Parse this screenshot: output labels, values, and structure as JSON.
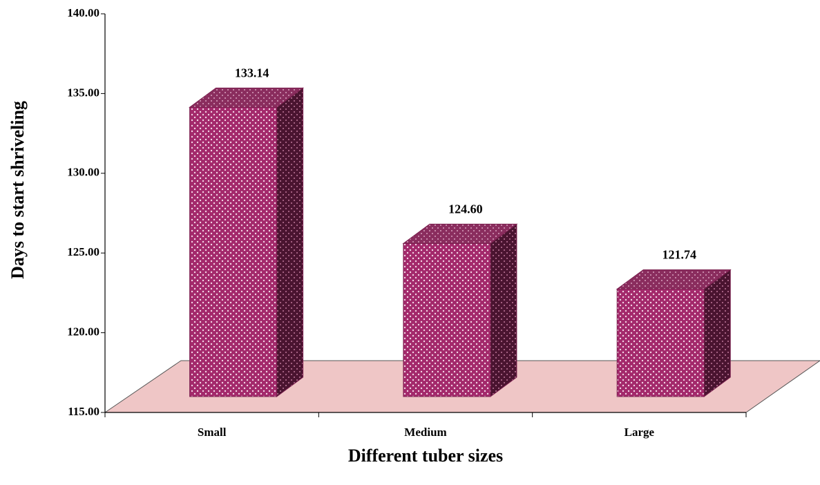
{
  "chart_data": {
    "type": "bar3d",
    "categories": [
      "Small",
      "Medium",
      "Large"
    ],
    "values": [
      133.14,
      124.6,
      121.74
    ],
    "value_labels": [
      "133.14",
      "124.60",
      "121.74"
    ],
    "color": "#a3296b",
    "ylim": [
      115,
      140
    ],
    "yticks": [
      {
        "value": 115,
        "label": "115.00"
      },
      {
        "value": 120,
        "label": "120.00"
      },
      {
        "value": 125,
        "label": "125.00"
      },
      {
        "value": 130,
        "label": "130.00"
      },
      {
        "value": 135,
        "label": "135.00"
      },
      {
        "value": 140,
        "label": "140.00"
      }
    ],
    "xlabel": "Different tuber sizes",
    "ylabel": "Days to start shriveling"
  }
}
